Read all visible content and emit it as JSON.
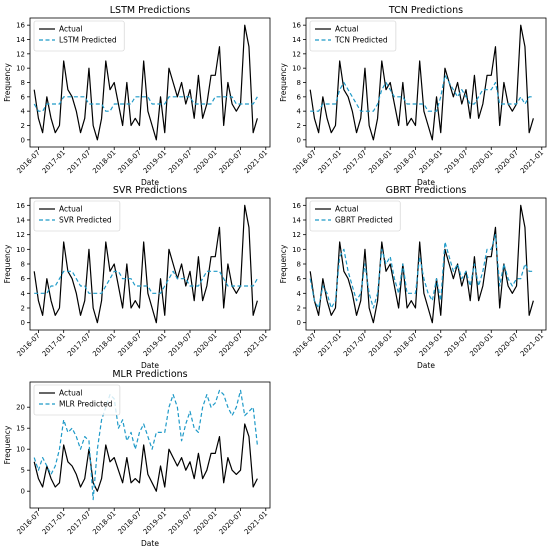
{
  "chart_data": [
    {
      "type": "line",
      "title": "LSTM Predictions",
      "xlabel": "Date",
      "ylabel": "Frequency",
      "xlim": [
        "2016-05",
        "2021-02"
      ],
      "ylim": [
        -1,
        17
      ],
      "yticks": [
        0,
        2,
        4,
        6,
        8,
        10,
        12,
        14,
        16
      ],
      "xticks": [
        "2016-07",
        "2017-01",
        "2017-07",
        "2018-01",
        "2018-07",
        "2019-01",
        "2019-07",
        "2020-01",
        "2020-07",
        "2021-01"
      ],
      "legend_position": "top-left",
      "x": [
        "2016-06",
        "2016-07",
        "2016-08",
        "2016-09",
        "2016-10",
        "2016-11",
        "2016-12",
        "2017-01",
        "2017-02",
        "2017-03",
        "2017-04",
        "2017-05",
        "2017-06",
        "2017-07",
        "2017-08",
        "2017-09",
        "2017-10",
        "2017-11",
        "2017-12",
        "2018-01",
        "2018-02",
        "2018-03",
        "2018-04",
        "2018-05",
        "2018-06",
        "2018-07",
        "2018-08",
        "2018-09",
        "2018-10",
        "2018-11",
        "2018-12",
        "2019-01",
        "2019-02",
        "2019-03",
        "2019-04",
        "2019-05",
        "2019-06",
        "2019-07",
        "2019-08",
        "2019-09",
        "2019-10",
        "2019-11",
        "2019-12",
        "2020-01",
        "2020-02",
        "2020-03",
        "2020-04",
        "2020-05",
        "2020-06",
        "2020-07",
        "2020-08",
        "2020-09",
        "2020-10",
        "2020-11"
      ],
      "series": [
        {
          "name": "Actual",
          "color": "#000000",
          "dash": "solid",
          "values": [
            7,
            3,
            1,
            6,
            3,
            1,
            2,
            11,
            7,
            6,
            4,
            1,
            3,
            10,
            2,
            0,
            3,
            11,
            7,
            8,
            5,
            2,
            8,
            2,
            3,
            2,
            11,
            4,
            2,
            0,
            6,
            1,
            10,
            8,
            6,
            8,
            5,
            7,
            3,
            9,
            3,
            5,
            9,
            9,
            13,
            2,
            8,
            5,
            4,
            5,
            16,
            13,
            1,
            3
          ]
        },
        {
          "name": "LSTM Predicted",
          "color": "#1f9ac8",
          "dash": "dashed",
          "values": [
            5,
            4,
            4,
            5,
            5,
            5,
            5,
            6,
            6,
            6,
            6,
            6,
            6,
            5,
            5,
            5,
            5,
            4,
            4,
            5,
            5,
            5,
            5,
            5,
            6,
            6,
            6,
            6,
            5,
            5,
            5,
            5,
            6,
            6,
            6,
            6,
            6,
            6,
            5,
            5,
            5,
            5,
            5,
            6,
            6,
            6,
            6,
            6,
            5,
            5,
            5,
            5,
            5,
            6
          ]
        }
      ]
    },
    {
      "type": "line",
      "title": "TCN Predictions",
      "xlabel": "Date",
      "ylabel": "Frequency",
      "xlim": [
        "2016-05",
        "2021-02"
      ],
      "ylim": [
        -1,
        17
      ],
      "yticks": [
        0,
        2,
        4,
        6,
        8,
        10,
        12,
        14,
        16
      ],
      "xticks": [
        "2016-07",
        "2017-01",
        "2017-07",
        "2018-01",
        "2018-07",
        "2019-01",
        "2019-07",
        "2020-01",
        "2020-07",
        "2021-01"
      ],
      "legend_position": "top-left",
      "x": [
        "2016-06",
        "2016-07",
        "2016-08",
        "2016-09",
        "2016-10",
        "2016-11",
        "2016-12",
        "2017-01",
        "2017-02",
        "2017-03",
        "2017-04",
        "2017-05",
        "2017-06",
        "2017-07",
        "2017-08",
        "2017-09",
        "2017-10",
        "2017-11",
        "2017-12",
        "2018-01",
        "2018-02",
        "2018-03",
        "2018-04",
        "2018-05",
        "2018-06",
        "2018-07",
        "2018-08",
        "2018-09",
        "2018-10",
        "2018-11",
        "2018-12",
        "2019-01",
        "2019-02",
        "2019-03",
        "2019-04",
        "2019-05",
        "2019-06",
        "2019-07",
        "2019-08",
        "2019-09",
        "2019-10",
        "2019-11",
        "2019-12",
        "2020-01",
        "2020-02",
        "2020-03",
        "2020-04",
        "2020-05",
        "2020-06",
        "2020-07",
        "2020-08",
        "2020-09",
        "2020-10",
        "2020-11"
      ],
      "series": [
        {
          "name": "Actual",
          "color": "#000000",
          "dash": "solid",
          "values": [
            7,
            3,
            1,
            6,
            3,
            1,
            2,
            11,
            7,
            6,
            4,
            1,
            3,
            10,
            2,
            0,
            3,
            11,
            7,
            8,
            5,
            2,
            8,
            2,
            3,
            2,
            11,
            4,
            2,
            0,
            6,
            1,
            10,
            8,
            6,
            8,
            5,
            7,
            3,
            9,
            3,
            5,
            9,
            9,
            13,
            2,
            8,
            5,
            4,
            5,
            16,
            13,
            1,
            3
          ]
        },
        {
          "name": "TCN Predicted",
          "color": "#1f9ac8",
          "dash": "dashed",
          "values": [
            4,
            4,
            4,
            5,
            5,
            5,
            5,
            7,
            8,
            7,
            6,
            5,
            4,
            4,
            4,
            4,
            5,
            7,
            8,
            7,
            6,
            6,
            6,
            5,
            5,
            5,
            5,
            5,
            4,
            4,
            4,
            6,
            9,
            8,
            7,
            6,
            7,
            6,
            5,
            5,
            6,
            7,
            7,
            7,
            8,
            5,
            5,
            5,
            5,
            5,
            6,
            5,
            6,
            6
          ]
        }
      ]
    },
    {
      "type": "line",
      "title": "SVR Predictions",
      "xlabel": "Date",
      "ylabel": "Frequency",
      "xlim": [
        "2016-05",
        "2021-02"
      ],
      "ylim": [
        -1,
        17
      ],
      "yticks": [
        0,
        2,
        4,
        6,
        8,
        10,
        12,
        14,
        16
      ],
      "xticks": [
        "2016-07",
        "2017-01",
        "2017-07",
        "2018-01",
        "2018-07",
        "2019-01",
        "2019-07",
        "2020-01",
        "2020-07",
        "2021-01"
      ],
      "legend_position": "top-left",
      "x": [
        "2016-06",
        "2016-07",
        "2016-08",
        "2016-09",
        "2016-10",
        "2016-11",
        "2016-12",
        "2017-01",
        "2017-02",
        "2017-03",
        "2017-04",
        "2017-05",
        "2017-06",
        "2017-07",
        "2017-08",
        "2017-09",
        "2017-10",
        "2017-11",
        "2017-12",
        "2018-01",
        "2018-02",
        "2018-03",
        "2018-04",
        "2018-05",
        "2018-06",
        "2018-07",
        "2018-08",
        "2018-09",
        "2018-10",
        "2018-11",
        "2018-12",
        "2019-01",
        "2019-02",
        "2019-03",
        "2019-04",
        "2019-05",
        "2019-06",
        "2019-07",
        "2019-08",
        "2019-09",
        "2019-10",
        "2019-11",
        "2019-12",
        "2020-01",
        "2020-02",
        "2020-03",
        "2020-04",
        "2020-05",
        "2020-06",
        "2020-07",
        "2020-08",
        "2020-09",
        "2020-10",
        "2020-11"
      ],
      "series": [
        {
          "name": "Actual",
          "color": "#000000",
          "dash": "solid",
          "values": [
            7,
            3,
            1,
            6,
            3,
            1,
            2,
            11,
            7,
            6,
            4,
            1,
            3,
            10,
            2,
            0,
            3,
            11,
            7,
            8,
            5,
            2,
            8,
            2,
            3,
            2,
            11,
            4,
            2,
            0,
            6,
            1,
            10,
            8,
            6,
            8,
            5,
            7,
            3,
            9,
            3,
            5,
            9,
            9,
            13,
            2,
            8,
            5,
            4,
            5,
            16,
            13,
            1,
            3
          ]
        },
        {
          "name": "SVR Predicted",
          "color": "#1f9ac8",
          "dash": "dashed",
          "values": [
            4,
            4,
            4,
            4,
            5,
            5,
            6,
            7,
            7,
            7,
            6,
            5,
            5,
            4,
            4,
            4,
            4,
            5,
            6,
            7,
            7,
            6,
            6,
            6,
            5,
            5,
            5,
            5,
            4,
            4,
            4,
            5,
            6,
            7,
            6,
            6,
            6,
            5,
            5,
            5,
            6,
            7,
            7,
            7,
            7,
            6,
            5,
            5,
            5,
            5,
            5,
            5,
            5,
            6
          ]
        }
      ]
    },
    {
      "type": "line",
      "title": "GBRT Predictions",
      "xlabel": "Date",
      "ylabel": "Frequency",
      "xlim": [
        "2016-05",
        "2021-02"
      ],
      "ylim": [
        -1,
        17
      ],
      "yticks": [
        0,
        2,
        4,
        6,
        8,
        10,
        12,
        14,
        16
      ],
      "xticks": [
        "2016-07",
        "2017-01",
        "2017-07",
        "2018-01",
        "2018-07",
        "2019-01",
        "2019-07",
        "2020-01",
        "2020-07",
        "2021-01"
      ],
      "legend_position": "top-left",
      "x": [
        "2016-06",
        "2016-07",
        "2016-08",
        "2016-09",
        "2016-10",
        "2016-11",
        "2016-12",
        "2017-01",
        "2017-02",
        "2017-03",
        "2017-04",
        "2017-05",
        "2017-06",
        "2017-07",
        "2017-08",
        "2017-09",
        "2017-10",
        "2017-11",
        "2017-12",
        "2018-01",
        "2018-02",
        "2018-03",
        "2018-04",
        "2018-05",
        "2018-06",
        "2018-07",
        "2018-08",
        "2018-09",
        "2018-10",
        "2018-11",
        "2018-12",
        "2019-01",
        "2019-02",
        "2019-03",
        "2019-04",
        "2019-05",
        "2019-06",
        "2019-07",
        "2019-08",
        "2019-09",
        "2019-10",
        "2019-11",
        "2019-12",
        "2020-01",
        "2020-02",
        "2020-03",
        "2020-04",
        "2020-05",
        "2020-06",
        "2020-07",
        "2020-08",
        "2020-09",
        "2020-10",
        "2020-11"
      ],
      "series": [
        {
          "name": "Actual",
          "color": "#000000",
          "dash": "solid",
          "values": [
            7,
            3,
            1,
            6,
            3,
            1,
            2,
            11,
            7,
            6,
            4,
            1,
            3,
            10,
            2,
            0,
            3,
            11,
            7,
            8,
            5,
            2,
            8,
            2,
            3,
            2,
            11,
            4,
            2,
            0,
            6,
            1,
            10,
            8,
            6,
            8,
            5,
            7,
            3,
            9,
            3,
            5,
            9,
            9,
            13,
            2,
            8,
            5,
            4,
            5,
            16,
            13,
            1,
            3
          ]
        },
        {
          "name": "GBRT Predicted",
          "color": "#1f9ac8",
          "dash": "dashed",
          "values": [
            6,
            3,
            2,
            5,
            4,
            2,
            3,
            9,
            10,
            7,
            5,
            3,
            4,
            8,
            4,
            2,
            4,
            10,
            8,
            9,
            6,
            4,
            8,
            4,
            4,
            4,
            9,
            6,
            4,
            3,
            6,
            3,
            11,
            9,
            7,
            8,
            6,
            7,
            5,
            8,
            5,
            7,
            10,
            10,
            12,
            5,
            8,
            6,
            5,
            6,
            6,
            8,
            7,
            7
          ]
        }
      ]
    },
    {
      "type": "line",
      "title": "MLR Predictions",
      "xlabel": "Date",
      "ylabel": "Frequency",
      "xlim": [
        "2016-05",
        "2021-02"
      ],
      "ylim": [
        -4,
        26
      ],
      "yticks": [
        0,
        5,
        10,
        15,
        20
      ],
      "xticks": [
        "2016-07",
        "2017-01",
        "2017-07",
        "2018-01",
        "2018-07",
        "2019-01",
        "2019-07",
        "2020-01",
        "2020-07",
        "2021-01"
      ],
      "legend_position": "top-left",
      "x": [
        "2016-06",
        "2016-07",
        "2016-08",
        "2016-09",
        "2016-10",
        "2016-11",
        "2016-12",
        "2017-01",
        "2017-02",
        "2017-03",
        "2017-04",
        "2017-05",
        "2017-06",
        "2017-07",
        "2017-08",
        "2017-09",
        "2017-10",
        "2017-11",
        "2017-12",
        "2018-01",
        "2018-02",
        "2018-03",
        "2018-04",
        "2018-05",
        "2018-06",
        "2018-07",
        "2018-08",
        "2018-09",
        "2018-10",
        "2018-11",
        "2018-12",
        "2019-01",
        "2019-02",
        "2019-03",
        "2019-04",
        "2019-05",
        "2019-06",
        "2019-07",
        "2019-08",
        "2019-09",
        "2019-10",
        "2019-11",
        "2019-12",
        "2020-01",
        "2020-02",
        "2020-03",
        "2020-04",
        "2020-05",
        "2020-06",
        "2020-07",
        "2020-08",
        "2020-09",
        "2020-10",
        "2020-11"
      ],
      "series": [
        {
          "name": "Actual",
          "color": "#000000",
          "dash": "solid",
          "values": [
            7,
            3,
            1,
            6,
            3,
            1,
            2,
            11,
            7,
            6,
            4,
            1,
            3,
            10,
            2,
            0,
            3,
            11,
            7,
            8,
            5,
            2,
            8,
            2,
            3,
            2,
            11,
            4,
            2,
            0,
            6,
            1,
            10,
            8,
            6,
            8,
            5,
            7,
            3,
            9,
            3,
            5,
            9,
            9,
            13,
            2,
            8,
            5,
            4,
            5,
            16,
            13,
            1,
            3
          ]
        },
        {
          "name": "MLR Predicted",
          "color": "#1f9ac8",
          "dash": "dashed",
          "values": [
            8,
            5,
            8,
            6,
            4,
            6,
            10,
            17,
            14,
            15,
            13,
            10,
            13,
            12,
            -2,
            10,
            17,
            20,
            23,
            22,
            15,
            17,
            12,
            14,
            10,
            14,
            16,
            13,
            10,
            14,
            14,
            14,
            20,
            23,
            20,
            12,
            16,
            19,
            15,
            14,
            20,
            23,
            20,
            21,
            24,
            23,
            20,
            18,
            20,
            24,
            18,
            19,
            20,
            11
          ]
        }
      ]
    }
  ]
}
